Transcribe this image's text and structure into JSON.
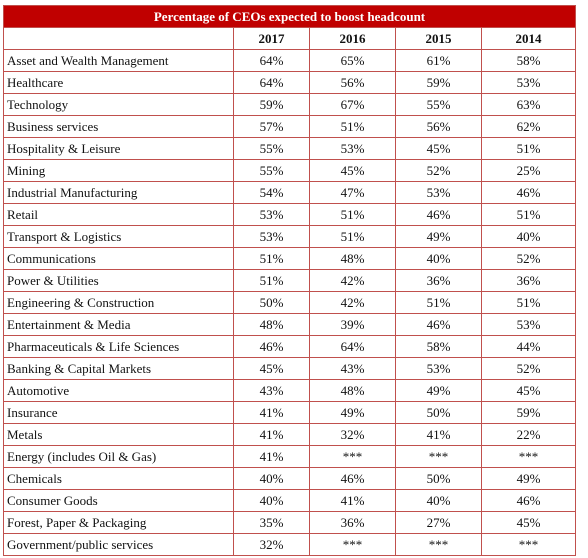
{
  "table": {
    "title": "Percentage of CEOs expected to boost headcount",
    "header": [
      "",
      "2017",
      "2016",
      "2015",
      "2014"
    ],
    "rows": [
      [
        "Asset and  Wealth Management",
        "64%",
        "65%",
        "61%",
        "58%"
      ],
      [
        "Healthcare",
        "64%",
        "56%",
        "59%",
        "53%"
      ],
      [
        "Technology",
        "59%",
        "67%",
        "55%",
        "63%"
      ],
      [
        "Business services",
        "57%",
        "51%",
        "56%",
        "62%"
      ],
      [
        "Hospitality & Leisure",
        "55%",
        "53%",
        "45%",
        "51%"
      ],
      [
        "Mining",
        "55%",
        "45%",
        "52%",
        "25%"
      ],
      [
        "Industrial Manufacturing",
        "54%",
        "47%",
        "53%",
        "46%"
      ],
      [
        "Retail",
        "53%",
        "51%",
        "46%",
        "51%"
      ],
      [
        "Transport & Logistics",
        "53%",
        "51%",
        "49%",
        "40%"
      ],
      [
        "Communications",
        "51%",
        "48%",
        "40%",
        "52%"
      ],
      [
        "Power & Utilities",
        "51%",
        "42%",
        "36%",
        "36%"
      ],
      [
        "Engineering & Construction",
        "50%",
        "42%",
        "51%",
        "51%"
      ],
      [
        "Entertainment & Media",
        "48%",
        "39%",
        "46%",
        "53%"
      ],
      [
        "Pharmaceuticals & Life Sciences",
        "46%",
        "64%",
        "58%",
        "44%"
      ],
      [
        "Banking & Capital Markets",
        "45%",
        "43%",
        "53%",
        "52%"
      ],
      [
        "Automotive",
        "43%",
        "48%",
        "49%",
        "45%"
      ],
      [
        "Insurance",
        "41%",
        "49%",
        "50%",
        "59%"
      ],
      [
        "Metals",
        "41%",
        "32%",
        "41%",
        "22%"
      ],
      [
        "Energy (includes Oil & Gas)",
        "41%",
        "***",
        "***",
        "***"
      ],
      [
        "Chemicals",
        "40%",
        "46%",
        "50%",
        "49%"
      ],
      [
        "Consumer Goods",
        "40%",
        "41%",
        "40%",
        "46%"
      ],
      [
        "Forest, Paper & Packaging",
        "35%",
        "36%",
        "27%",
        "45%"
      ],
      [
        "Government/public services",
        "32%",
        "***",
        "***",
        "***"
      ]
    ]
  }
}
